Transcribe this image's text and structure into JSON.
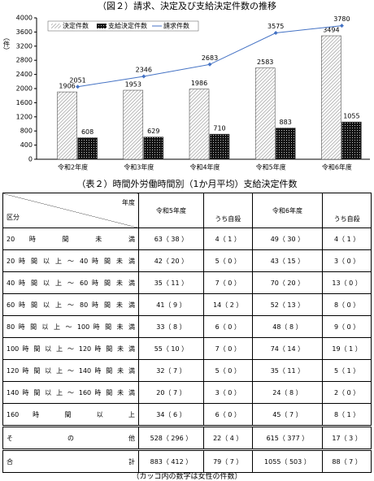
{
  "chart_data": {
    "type": "bar-line",
    "title": "（図２）請求、決定及び支給決定件数の推移",
    "y_label": "（件）",
    "categories": [
      "令和2年度",
      "令和3年度",
      "令和4年度",
      "令和5年度",
      "令和6年度"
    ],
    "series": [
      {
        "name": "決定件数",
        "type": "bar",
        "color": "#8c8c8c",
        "values": [
          1906,
          1953,
          1986,
          2583,
          3494
        ]
      },
      {
        "name": "支給決定件数",
        "type": "bar",
        "color": "#111111",
        "values": [
          608,
          629,
          710,
          883,
          1055
        ]
      },
      {
        "name": "請求件数",
        "type": "line",
        "color": "#4472c4",
        "values": [
          2051,
          2346,
          2683,
          3575,
          3780
        ]
      }
    ],
    "ylim": [
      0,
      4000
    ],
    "yticks": [
      0,
      400,
      800,
      1200,
      1600,
      2000,
      2400,
      2800,
      3200,
      3600,
      4000
    ],
    "grid": false,
    "legend": "top-left"
  },
  "table": {
    "title": "（表２）時間外労働時間別（1か月平均）支給決定件数",
    "corner_top": "年度",
    "corner_bottom": "区分",
    "columns": [
      "令和5年度",
      "うち自殺",
      "令和6年度",
      "うち自殺"
    ],
    "rows": [
      [
        "20 時 間 未 満",
        "63（ 38 ）",
        "4（ 1 ）",
        "49（ 30 ）",
        "4（ 1 ）"
      ],
      [
        "20 時 間 以 上 ～ 40 時 間 未 満",
        "42（ 20 ）",
        "5（ 0 ）",
        "43（ 15 ）",
        "3（ 0 ）"
      ],
      [
        "40 時 間 以 上 ～ 60 時 間 未 満",
        "35（ 11 ）",
        "7（ 0 ）",
        "70（ 20 ）",
        "13（ 0 ）"
      ],
      [
        "60 時 間 以 上 ～ 80 時 間 未 満",
        "41（ 9 ）",
        "14（ 2 ）",
        "52（ 13 ）",
        "8（ 0 ）"
      ],
      [
        "80 時 間 以 上 ～ 100 時 間 未 満",
        "33（ 8 ）",
        "6（ 0 ）",
        "48（ 8 ）",
        "9（ 0 ）"
      ],
      [
        "100 時 間 以 上 ～ 120 時 間 未 満",
        "55（ 10 ）",
        "7（ 0 ）",
        "74（ 14 ）",
        "19（ 1 ）"
      ],
      [
        "120 時 間 以 上 ～ 140 時 間 未 満",
        "32（ 7 ）",
        "5（ 0 ）",
        "35（ 11 ）",
        "5（ 1 ）"
      ],
      [
        "140 時 間 以 上 ～ 160 時 間 未 満",
        "20（ 7 ）",
        "3（ 0 ）",
        "24（ 8 ）",
        "2（ 0 ）"
      ],
      [
        "160 時 間 以 上",
        "34（ 6 ）",
        "6（ 0 ）",
        "45（ 7 ）",
        "8（ 1 ）"
      ],
      [
        "そ の 他",
        "528（ 296 ）",
        "22（ 4 ）",
        "615（ 377 ）",
        "17（ 3 ）"
      ],
      [
        "合 計",
        "883（ 412 ）",
        "79（ 7 ）",
        "1055（ 503 ）",
        "88（ 7 ）"
      ]
    ],
    "note": "（カッコ内の数字は女性の件数）"
  }
}
